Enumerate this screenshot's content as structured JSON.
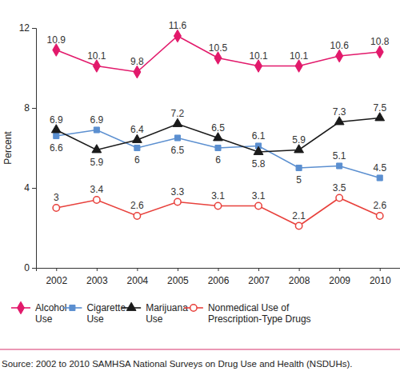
{
  "chart_data": {
    "type": "line",
    "y_label": "Percent",
    "categories": [
      "2002",
      "2003",
      "2004",
      "2005",
      "2006",
      "2007",
      "2008",
      "2009",
      "2010"
    ],
    "series": [
      {
        "name": "Alcohol Use",
        "color": "#e2196b",
        "marker": "diamond",
        "values": [
          10.9,
          10.1,
          9.8,
          11.6,
          10.5,
          10.1,
          10.1,
          10.6,
          10.8
        ]
      },
      {
        "name": "Cigarette Use",
        "color": "#5b8fd0",
        "marker": "square",
        "values": [
          6.6,
          6.9,
          6.0,
          6.5,
          6.0,
          6.1,
          5.0,
          5.1,
          4.5
        ]
      },
      {
        "name": "Marijuana Use",
        "color": "#1a1a1a",
        "marker": "triangle",
        "values": [
          6.9,
          5.9,
          6.4,
          7.2,
          6.5,
          5.8,
          5.9,
          7.3,
          7.5
        ]
      },
      {
        "name": "Nonmedical Use of Prescription-Type Drugs",
        "color": "#e8413c",
        "marker": "open-circle",
        "values": [
          3.0,
          3.4,
          2.6,
          3.3,
          3.1,
          3.1,
          2.1,
          3.5,
          2.6
        ]
      }
    ],
    "ylim": [
      0,
      12
    ],
    "yticks": [
      0,
      4,
      8,
      12
    ],
    "data_labels": true,
    "grid": false,
    "legend": "bottom",
    "source": "Source: 2002 to 2010 SAMHSA National Surveys on Drug Use and Health (NSDUHs)."
  }
}
